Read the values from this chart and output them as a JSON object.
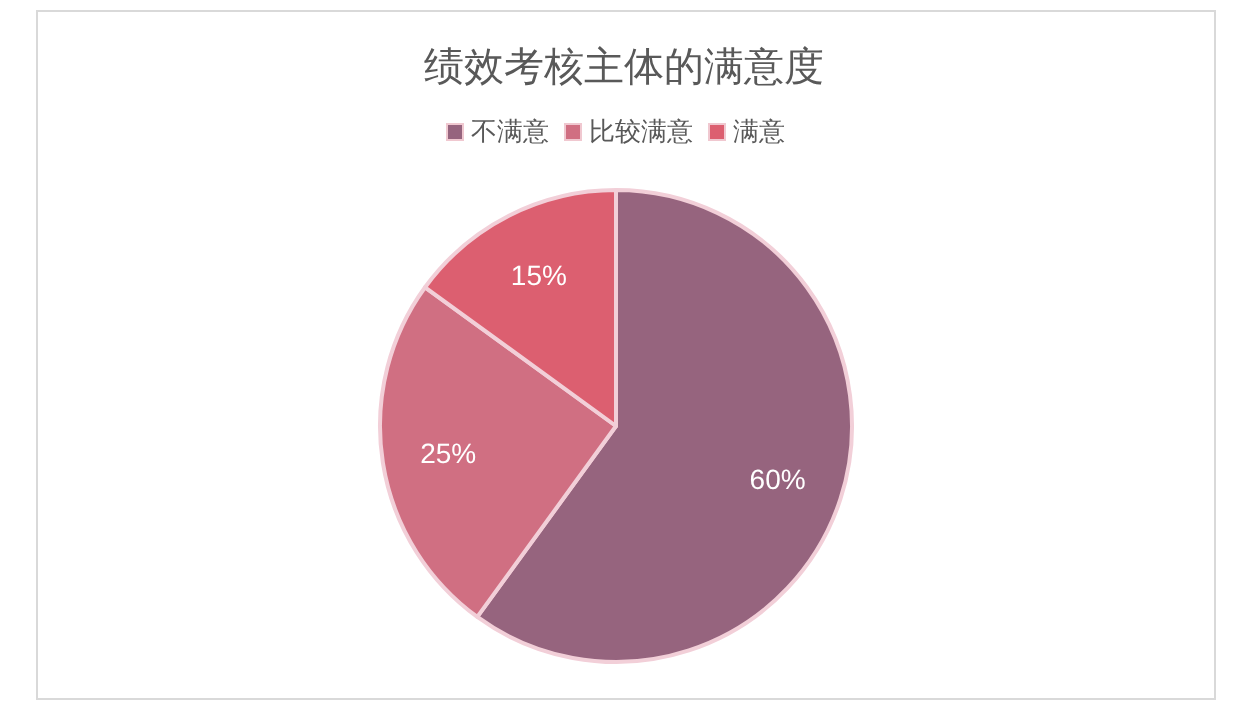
{
  "chart_data": {
    "type": "pie",
    "title": "绩效考核主体的满意度",
    "categories": [
      "不满意",
      "比较满意",
      "满意"
    ],
    "values": [
      60,
      25,
      15
    ],
    "colors": [
      "#96647e",
      "#d06f82",
      "#dc5f70"
    ],
    "value_labels": [
      "60%",
      "25%",
      "15%"
    ],
    "legend": "top"
  }
}
